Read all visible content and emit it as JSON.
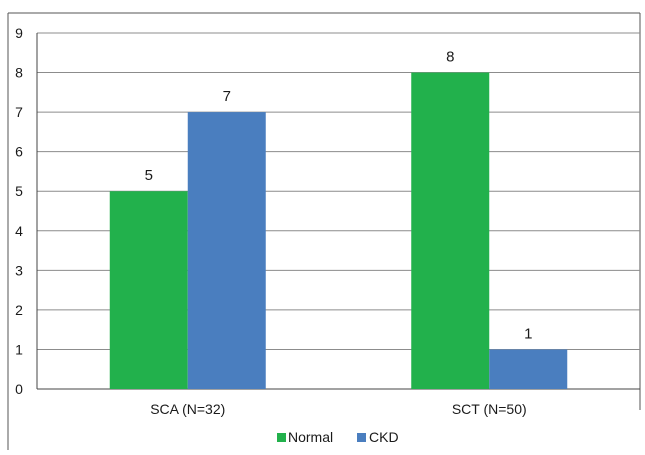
{
  "chart_data": {
    "type": "bar",
    "title": "",
    "xlabel": "",
    "ylabel": "",
    "categories": [
      "SCA (N=32)",
      "SCT (N=50)"
    ],
    "series": [
      {
        "name": "Normal",
        "color": "#22b14c",
        "values": [
          5,
          8
        ]
      },
      {
        "name": "CKD",
        "color": "#4a7ebf",
        "values": [
          7,
          1
        ]
      }
    ],
    "ylim": [
      0,
      9
    ],
    "yticks": [
      "0",
      "1",
      "2",
      "3",
      "4",
      "5",
      "6",
      "7",
      "8",
      "9"
    ],
    "grid": true,
    "data_labels": true,
    "legend_position": "bottom"
  }
}
